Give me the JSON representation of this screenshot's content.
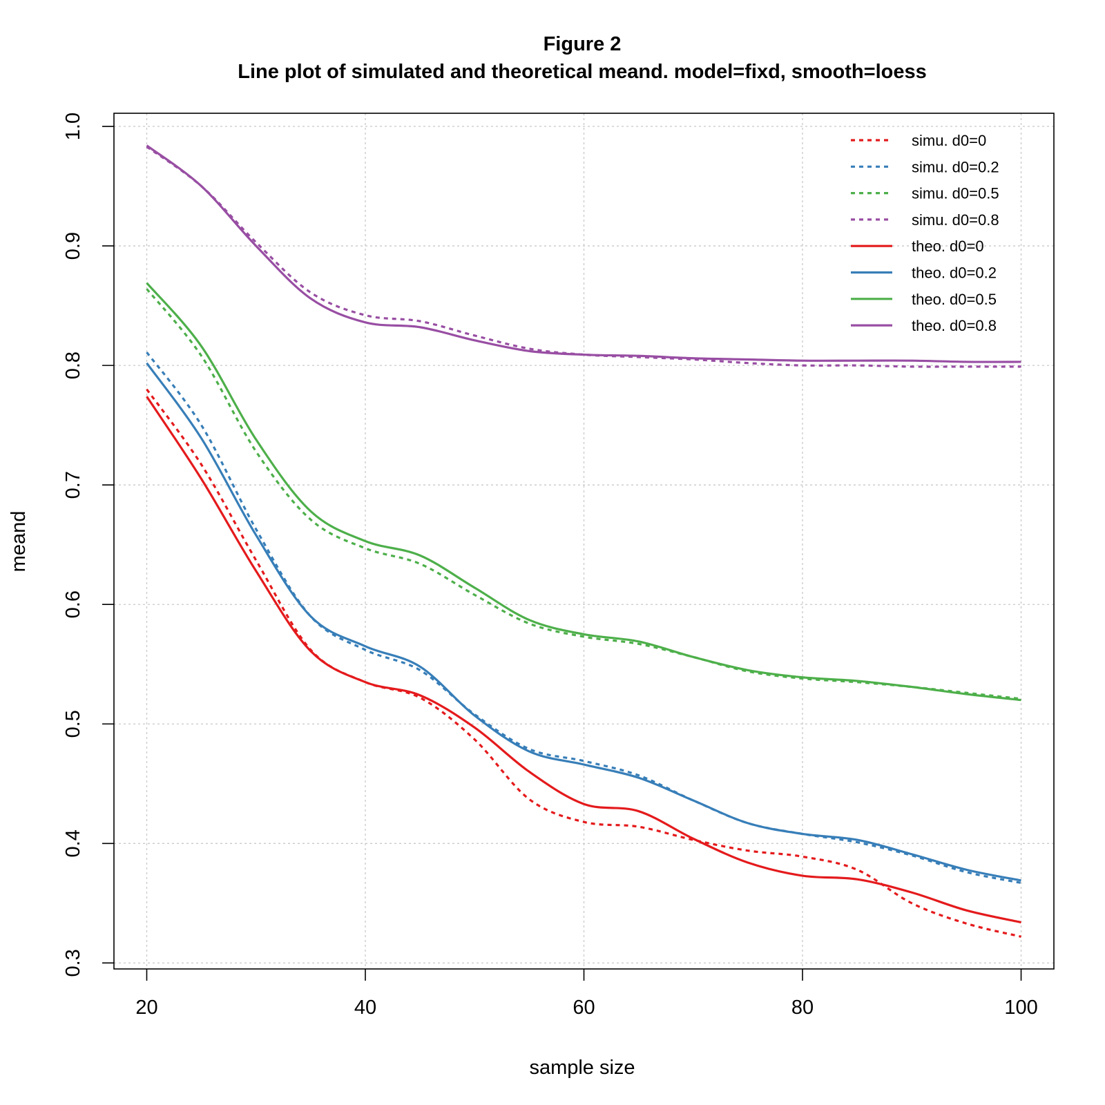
{
  "chart_data": {
    "type": "line",
    "title": "Figure 2",
    "subtitle": "Line plot of simulated and theoretical meand. model=fixd, smooth=loess",
    "xlabel": "sample size",
    "ylabel": "meand",
    "xlim": [
      17,
      103
    ],
    "ylim": [
      0.295,
      1.011
    ],
    "xticks": [
      20,
      40,
      60,
      80,
      100
    ],
    "xtick_labels": [
      "20",
      "40",
      "60",
      "80",
      "100"
    ],
    "yticks": [
      0.3,
      0.4,
      0.5,
      0.6,
      0.7,
      0.8,
      0.9,
      1.0
    ],
    "ytick_labels": [
      "0.3",
      "0.4",
      "0.5",
      "0.6",
      "0.7",
      "0.8",
      "0.9",
      "1.0"
    ],
    "grid": true,
    "legend_position": "top-right",
    "x": [
      20,
      25,
      30,
      35,
      40,
      45,
      50,
      55,
      60,
      65,
      70,
      75,
      80,
      85,
      90,
      95,
      100
    ],
    "series": [
      {
        "name": "simu. d0=0",
        "color": "#e41a1c",
        "style": "dotted",
        "values": [
          0.78,
          0.717,
          0.637,
          0.562,
          0.535,
          0.522,
          0.487,
          0.437,
          0.418,
          0.414,
          0.403,
          0.394,
          0.389,
          0.378,
          0.35,
          0.333,
          0.322
        ]
      },
      {
        "name": "simu. d0=0.2",
        "color": "#377eb8",
        "style": "dotted",
        "values": [
          0.811,
          0.75,
          0.663,
          0.59,
          0.562,
          0.545,
          0.508,
          0.479,
          0.469,
          0.457,
          0.436,
          0.417,
          0.408,
          0.401,
          0.39,
          0.376,
          0.367
        ]
      },
      {
        "name": "simu. d0=0.5",
        "color": "#4daf4a",
        "style": "dotted",
        "values": [
          0.864,
          0.808,
          0.728,
          0.671,
          0.647,
          0.634,
          0.608,
          0.584,
          0.573,
          0.567,
          0.556,
          0.544,
          0.538,
          0.535,
          0.531,
          0.526,
          0.521
        ]
      },
      {
        "name": "simu. d0=0.8",
        "color": "#984ea3",
        "style": "dotted",
        "values": [
          0.983,
          0.95,
          0.903,
          0.861,
          0.842,
          0.837,
          0.825,
          0.814,
          0.809,
          0.807,
          0.805,
          0.802,
          0.8,
          0.8,
          0.799,
          0.799,
          0.799
        ]
      },
      {
        "name": "theo. d0=0",
        "color": "#e41a1c",
        "style": "solid",
        "values": [
          0.774,
          0.705,
          0.628,
          0.561,
          0.535,
          0.524,
          0.497,
          0.46,
          0.433,
          0.427,
          0.404,
          0.384,
          0.373,
          0.37,
          0.359,
          0.344,
          0.334
        ]
      },
      {
        "name": "theo. d0=0.2",
        "color": "#377eb8",
        "style": "solid",
        "values": [
          0.802,
          0.739,
          0.658,
          0.59,
          0.565,
          0.548,
          0.507,
          0.477,
          0.466,
          0.455,
          0.436,
          0.417,
          0.408,
          0.403,
          0.391,
          0.378,
          0.369
        ]
      },
      {
        "name": "theo. d0=0.5",
        "color": "#4daf4a",
        "style": "solid",
        "values": [
          0.869,
          0.816,
          0.738,
          0.678,
          0.653,
          0.641,
          0.614,
          0.587,
          0.575,
          0.569,
          0.556,
          0.545,
          0.539,
          0.536,
          0.531,
          0.525,
          0.52
        ]
      },
      {
        "name": "theo. d0=0.8",
        "color": "#984ea3",
        "style": "solid",
        "values": [
          0.984,
          0.95,
          0.9,
          0.856,
          0.836,
          0.832,
          0.821,
          0.812,
          0.809,
          0.808,
          0.806,
          0.805,
          0.804,
          0.804,
          0.804,
          0.803,
          0.803
        ]
      }
    ]
  }
}
